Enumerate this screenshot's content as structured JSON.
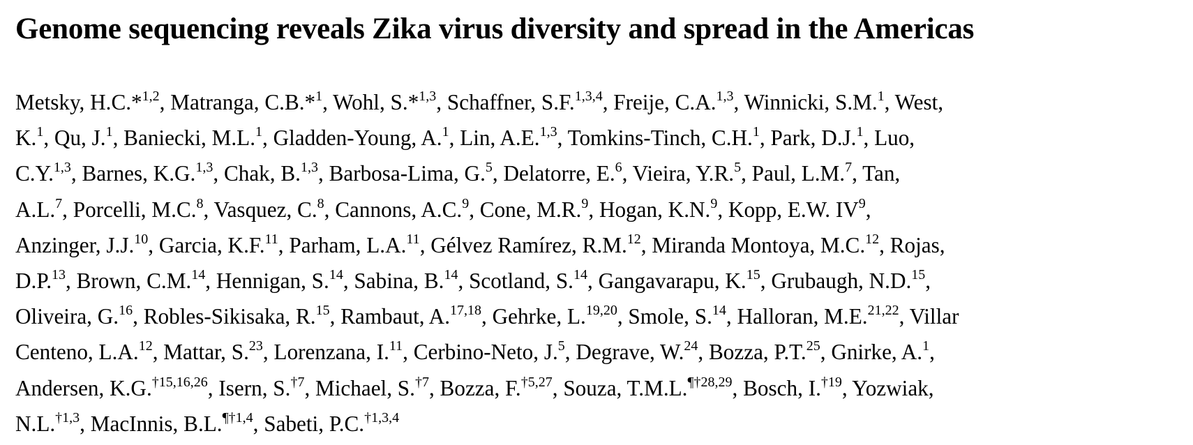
{
  "paper": {
    "title": "Genome sequencing reveals Zika virus diversity and spread in the Americas",
    "author_lines": [
      [
        {
          "t": "Metsky, H.C.*"
        },
        {
          "s": "1,2"
        },
        {
          "t": ", Matranga, C.B.*"
        },
        {
          "s": "1"
        },
        {
          "t": ", Wohl, S.*"
        },
        {
          "s": "1,3"
        },
        {
          "t": ", Schaffner, S.F."
        },
        {
          "s": "1,3,4"
        },
        {
          "t": ", Freije, C.A."
        },
        {
          "s": "1,3"
        },
        {
          "t": ", Winnicki, S.M."
        },
        {
          "s": "1"
        },
        {
          "t": ", West,"
        }
      ],
      [
        {
          "t": "K."
        },
        {
          "s": "1"
        },
        {
          "t": ", Qu, J."
        },
        {
          "s": "1"
        },
        {
          "t": ", Baniecki, M.L."
        },
        {
          "s": "1"
        },
        {
          "t": ", Gladden-Young, A."
        },
        {
          "s": "1"
        },
        {
          "t": ", Lin, A.E."
        },
        {
          "s": "1,3"
        },
        {
          "t": ", Tomkins-Tinch, C.H."
        },
        {
          "s": "1"
        },
        {
          "t": ", Park, D.J."
        },
        {
          "s": "1"
        },
        {
          "t": ", Luo,"
        }
      ],
      [
        {
          "t": "C.Y."
        },
        {
          "s": "1,3"
        },
        {
          "t": ", Barnes, K.G."
        },
        {
          "s": "1,3"
        },
        {
          "t": ", Chak, B."
        },
        {
          "s": "1,3"
        },
        {
          "t": ", Barbosa-Lima, G."
        },
        {
          "s": "5"
        },
        {
          "t": ", Delatorre, E."
        },
        {
          "s": "6"
        },
        {
          "t": ", Vieira, Y.R."
        },
        {
          "s": "5"
        },
        {
          "t": ", Paul, L.M."
        },
        {
          "s": "7"
        },
        {
          "t": ", Tan,"
        }
      ],
      [
        {
          "t": "A.L."
        },
        {
          "s": "7"
        },
        {
          "t": ", Porcelli, M.C."
        },
        {
          "s": "8"
        },
        {
          "t": ",  Vasquez, C."
        },
        {
          "s": "8"
        },
        {
          "t": ", Cannons, A.C."
        },
        {
          "s": "9"
        },
        {
          "t": ", Cone, M.R."
        },
        {
          "s": "9"
        },
        {
          "t": ", Hogan, K.N."
        },
        {
          "s": "9"
        },
        {
          "t": ",  Kopp, E.W. IV"
        },
        {
          "s": "9"
        },
        {
          "t": ","
        }
      ],
      [
        {
          "t": "Anzinger, J.J."
        },
        {
          "s": "10"
        },
        {
          "t": ", Garcia, K.F."
        },
        {
          "s": "11"
        },
        {
          "t": ", Parham, L.A."
        },
        {
          "s": "11"
        },
        {
          "t": ", Gélvez Ramírez, R.M."
        },
        {
          "s": "12"
        },
        {
          "t": ", Miranda Montoya, M.C."
        },
        {
          "s": "12"
        },
        {
          "t": ", Rojas,"
        }
      ],
      [
        {
          "t": "D.P."
        },
        {
          "s": "13"
        },
        {
          "t": ", Brown, C.M."
        },
        {
          "s": "14"
        },
        {
          "t": ", Hennigan, S."
        },
        {
          "s": "14"
        },
        {
          "t": ", Sabina, B."
        },
        {
          "s": "14"
        },
        {
          "t": ", Scotland, S."
        },
        {
          "s": "14"
        },
        {
          "t": ", Gangavarapu, K."
        },
        {
          "s": "15"
        },
        {
          "t": ", Grubaugh, N.D."
        },
        {
          "s": "15"
        },
        {
          "t": ","
        }
      ],
      [
        {
          "t": "Oliveira, G."
        },
        {
          "s": "16"
        },
        {
          "t": ", Robles-Sikisaka, R."
        },
        {
          "s": "15"
        },
        {
          "t": ", Rambaut, A."
        },
        {
          "s": "17,18"
        },
        {
          "t": ", Gehrke, L."
        },
        {
          "s": "19,20"
        },
        {
          "t": ", Smole, S."
        },
        {
          "s": "14"
        },
        {
          "t": ", Halloran, M.E."
        },
        {
          "s": "21,22"
        },
        {
          "t": ", Villar"
        }
      ],
      [
        {
          "t": "Centeno, L.A."
        },
        {
          "s": "12"
        },
        {
          "t": ", Mattar, S."
        },
        {
          "s": "23"
        },
        {
          "t": ", Lorenzana, I."
        },
        {
          "s": "11"
        },
        {
          "t": ", Cerbino-Neto, J."
        },
        {
          "s": "5"
        },
        {
          "t": ", Degrave, W."
        },
        {
          "s": "24"
        },
        {
          "t": ", Bozza, P.T."
        },
        {
          "s": "25"
        },
        {
          "t": ", Gnirke, A."
        },
        {
          "s": "1"
        },
        {
          "t": ","
        }
      ],
      [
        {
          "t": "Andersen, K.G."
        },
        {
          "s": "†15,16,26"
        },
        {
          "t": ", Isern, S."
        },
        {
          "s": "†7"
        },
        {
          "t": ", Michael, S."
        },
        {
          "s": "†7"
        },
        {
          "t": ", Bozza, F."
        },
        {
          "s": "†5,27"
        },
        {
          "t": ", Souza, T.M.L."
        },
        {
          "s": "¶†28,29"
        },
        {
          "t": ", Bosch, I."
        },
        {
          "s": "†19"
        },
        {
          "t": ", Yozwiak,"
        }
      ],
      [
        {
          "t": "N.L."
        },
        {
          "s": "†1,3"
        },
        {
          "t": ", MacInnis, B.L."
        },
        {
          "s": "¶†1,4"
        },
        {
          "t": ", Sabeti, P.C."
        },
        {
          "s": "†1,3,4"
        }
      ]
    ]
  }
}
